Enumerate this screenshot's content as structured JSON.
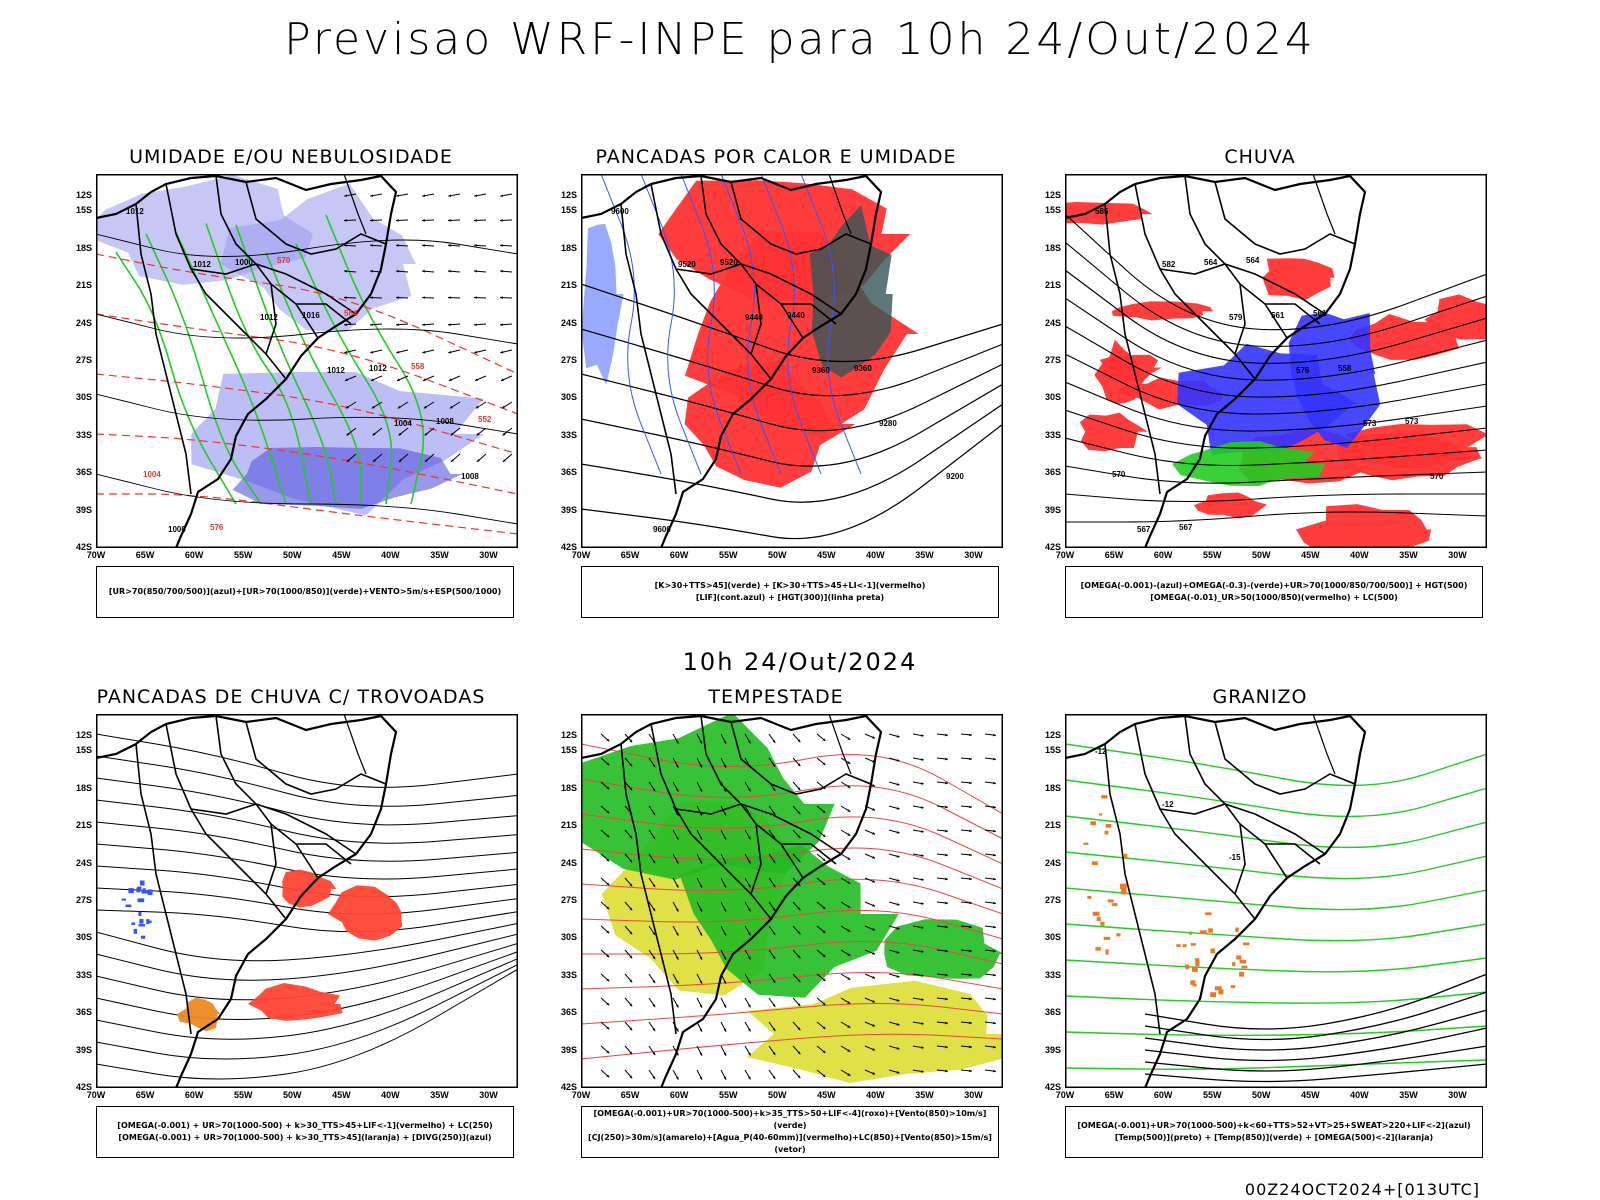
{
  "header": {
    "title": "Previsao WRF-INPE  para 10h 24/Out/2024"
  },
  "subtitle": "10h 24/Out/2024",
  "footer": "00Z24OCT2024+[013UTC]",
  "axes": {
    "lat_labels": [
      "12S",
      "15S",
      "18S",
      "21S",
      "24S",
      "27S",
      "30S",
      "33S",
      "36S",
      "39S",
      "42S"
    ],
    "lon_labels": [
      "70W",
      "65W",
      "60W",
      "55W",
      "50W",
      "45W",
      "40W",
      "35W",
      "30W"
    ]
  },
  "panels": [
    {
      "title": "UMIDADE E/OU NEBULOSIDADE",
      "legend": [
        "[UR>70(850/700/500)](azul)+[UR>70(1000/850)](verde)+VENTO>5m/s+ESP(500/1000)"
      ],
      "labels": [
        "1012",
        "1012",
        "1012",
        "1012",
        "1004",
        "1008",
        "1000",
        "1000",
        "1016",
        "1012",
        "1008",
        "1004",
        "576",
        "570",
        "564",
        "558",
        "552"
      ]
    },
    {
      "title": "PANCADAS POR CALOR E UMIDADE",
      "legend": [
        "[K>30+TTS>45](verde) + [K>30+TTS>45+LI<-1](vermelho)",
        "[LIF](cont.azul) + [HGT(300)](linha preta)"
      ],
      "labels": [
        "9600",
        "9520",
        "9440",
        "9360",
        "9280",
        "9200",
        "9600",
        "9520",
        "9440",
        "9360"
      ]
    },
    {
      "title": "CHUVA",
      "legend": [
        "[OMEGA(-0.001)-(azul)+OMEGA(-0.3)-(verde)+UR>70(1000/850/700/500)] + HGT(500)",
        "[OMEGA(-0.01)_UR>50(1000/850)(vermelho) + LC(500)"
      ],
      "labels": [
        "585",
        "582",
        "579",
        "576",
        "573",
        "570",
        "567",
        "564",
        "561",
        "558",
        "573",
        "570",
        "567",
        "564",
        "561"
      ]
    },
    {
      "title": "PANCADAS DE CHUVA C/ TROVOADAS",
      "legend": [
        "[OMEGA(-0.001) + UR>70(1000-500) + k>30_TTS>45+LIF<-1](vermelho) + LC(250)",
        "[OMEGA(-0.001) + UR>70(1000-500) + k>30_TTS>45](laranja) + [DIVG(250)](azul)"
      ],
      "labels": []
    },
    {
      "title": "TEMPESTADE",
      "legend": [
        "[OMEGA(-0.001)+UR>70(1000-500)+k>35_TTS>50+LIF<-4](roxo)+[Vento(850)>10m/s](verde)",
        "[CJ(250)>30m/s](amarelo)+[Agua_P(40-60mm)](vermelho)+LC(850)+[Vento(850)>15m/s](vetor)"
      ],
      "labels": []
    },
    {
      "title": "GRANIZO",
      "legend": [
        "[OMEGA(-0.001)+UR>70(1000-500)+k<60+TTS>52+VT>25+SWEAT>220+LIF<-2](azul)",
        "[Temp(500)](preto) + [Temp(850)](verde) + [OMEGA(500)<-2](laranja)"
      ],
      "labels": [
        "-12",
        "-12",
        "-15"
      ]
    }
  ]
}
